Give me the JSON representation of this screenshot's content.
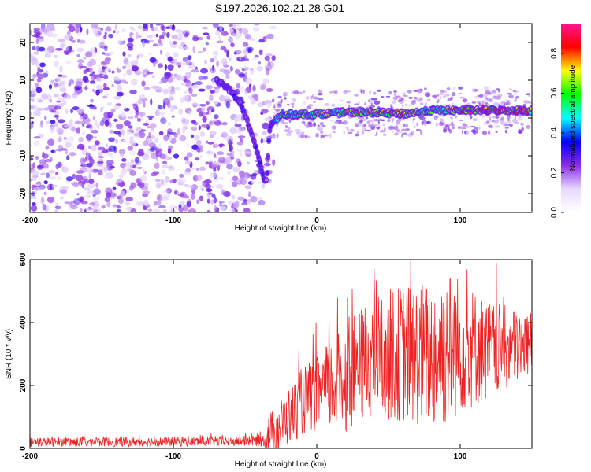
{
  "title": "S197.2026.102.21.28.G01",
  "colors": {
    "snr_line": "#ee2222",
    "colormap": [
      "#ffffff",
      "#e6d9ff",
      "#8a2be2",
      "#0000ff",
      "#00ffff",
      "#00ff00",
      "#ffff00",
      "#ff0000",
      "#ff1493"
    ]
  },
  "chart_data": [
    {
      "type": "heatmap",
      "title": "S197.2026.102.21.28.G01",
      "xlabel": "Height of straight line (km)",
      "ylabel": "Frequency (Hz)",
      "xlim": [
        -200,
        150
      ],
      "ylim": [
        -25,
        25
      ],
      "xticks": [
        -200,
        -100,
        0,
        100
      ],
      "xtick_labels": [
        "-200",
        "-100",
        "0",
        "100"
      ],
      "yticks": [
        -20,
        -10,
        0,
        10,
        20
      ],
      "ytick_labels": [
        "-20",
        "-10",
        "0",
        "10",
        "20"
      ],
      "colorbar": {
        "label": "Normalized spectral amplitude",
        "range": [
          0,
          0.95
        ],
        "ticks": [
          0.0,
          0.2,
          0.4,
          0.6,
          0.8
        ],
        "tick_labels": [
          "0.0",
          "0.2",
          "0.4",
          "0.6",
          "0.8"
        ]
      },
      "ridge": {
        "x": [
          -70,
          -62,
          -55,
          -50,
          -45,
          -40,
          -37,
          -35,
          -33,
          -30,
          -25,
          -20,
          -10,
          0,
          20,
          40,
          60,
          80,
          100,
          120,
          150
        ],
        "y": [
          10,
          8,
          5,
          1,
          -5,
          -11,
          -16,
          -17,
          -3,
          -1,
          1,
          1,
          1,
          1,
          1.5,
          1.5,
          1,
          2,
          2,
          2,
          2
        ],
        "amplitude": [
          0.3,
          0.3,
          0.35,
          0.3,
          0.3,
          0.3,
          0.35,
          0.3,
          0.3,
          0.45,
          0.6,
          0.7,
          0.65,
          0.7,
          0.75,
          0.8,
          0.85,
          0.6,
          0.9,
          0.9,
          0.85
        ]
      },
      "noise_region": {
        "x": [
          -200,
          -35
        ],
        "y": [
          -25,
          25
        ],
        "amplitude_max": 0.2
      }
    },
    {
      "type": "line",
      "xlabel": "Height of straight line (km)",
      "ylabel": "SNR (10 * v/v)",
      "xlim": [
        -200,
        150
      ],
      "ylim": [
        0,
        600
      ],
      "xticks": [
        -200,
        -100,
        0,
        100
      ],
      "xtick_labels": [
        "-200",
        "-100",
        "0",
        "100"
      ],
      "yticks": [
        0,
        200,
        400,
        600
      ],
      "ytick_labels": [
        "0",
        "200",
        "400",
        "600"
      ],
      "series": [
        {
          "name": "SNR",
          "envelope_x": [
            -200,
            -50,
            -37,
            -35,
            -30,
            -20,
            -10,
            0,
            10,
            20,
            30,
            40,
            60,
            80,
            90,
            100,
            120,
            150
          ],
          "envelope_mean": [
            20,
            22,
            25,
            40,
            50,
            100,
            150,
            175,
            200,
            220,
            260,
            300,
            300,
            300,
            320,
            330,
            310,
            330
          ],
          "envelope_spread": [
            15,
            15,
            20,
            60,
            80,
            90,
            110,
            120,
            150,
            170,
            180,
            200,
            220,
            240,
            260,
            220,
            160,
            100
          ]
        }
      ]
    }
  ]
}
